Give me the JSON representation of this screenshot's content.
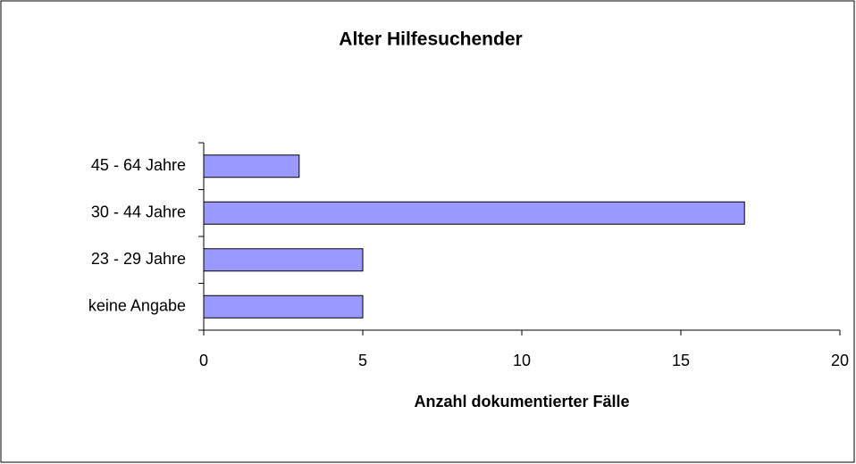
{
  "chart_data": {
    "type": "bar",
    "orientation": "horizontal",
    "title": "Alter Hilfesuchender",
    "xlabel": "Anzahl dokumentierter Fälle",
    "categories": [
      "45 - 64 Jahre",
      "30 - 44 Jahre",
      "23 - 29 Jahre",
      "keine Angabe"
    ],
    "values": [
      3,
      17,
      5,
      5
    ],
    "color": "#9999ff",
    "xlim": [
      0,
      20
    ],
    "xticks": [
      0,
      5,
      10,
      15,
      20
    ],
    "grid": false
  }
}
